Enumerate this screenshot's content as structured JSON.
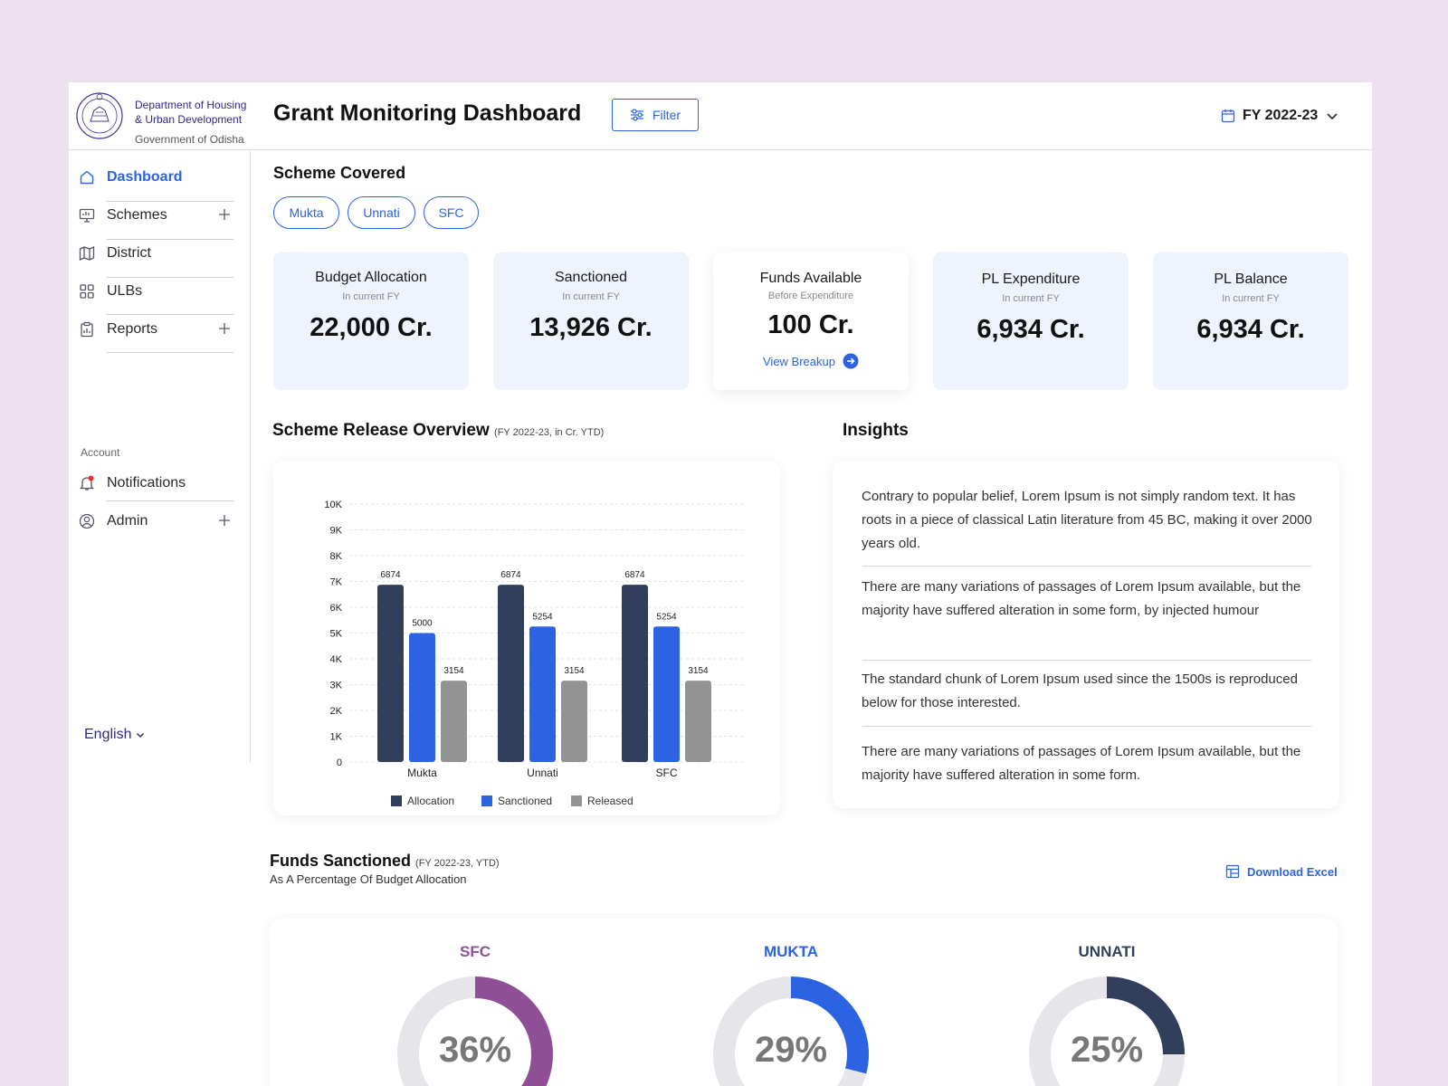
{
  "header": {
    "dept_line1": "Department of Housing",
    "dept_line2": "& Urban Development",
    "gov_line": "Government of Odisha",
    "title": "Grant Monitoring Dashboard",
    "filter_label": "Filter",
    "fy_label": "FY 2022-23"
  },
  "sidebar": {
    "items": [
      {
        "label": "Dashboard",
        "icon": "home-icon",
        "active": true
      },
      {
        "label": "Schemes",
        "icon": "monitor-icon",
        "expandable": true
      },
      {
        "label": "District",
        "icon": "map-icon"
      },
      {
        "label": "ULBs",
        "icon": "grid-icon"
      },
      {
        "label": "Reports",
        "icon": "clipboard-icon",
        "expandable": true
      }
    ],
    "account_label": "Account",
    "account_items": [
      {
        "label": "Notifications",
        "icon": "bell-icon"
      },
      {
        "label": "Admin",
        "icon": "user-circle-icon",
        "expandable": true
      }
    ],
    "language": "English"
  },
  "schemes": {
    "title": "Scheme Covered",
    "chips": [
      "Mukta",
      "Unnati",
      "SFC"
    ]
  },
  "cards": [
    {
      "title": "Budget Allocation",
      "subtitle": "In current FY",
      "value": "22,000 Cr."
    },
    {
      "title": "Sanctioned",
      "subtitle": "In current FY",
      "value": "13,926 Cr."
    },
    {
      "title": "Funds Available",
      "subtitle": "Before Expenditure",
      "value": "100 Cr.",
      "link": "View Breakup"
    },
    {
      "title": "PL Expenditure",
      "subtitle": "In current FY",
      "value": "6,934 Cr."
    },
    {
      "title": "PL Balance",
      "subtitle": "In current FY",
      "value": "6,934 Cr."
    }
  ],
  "release_overview": {
    "title": "Scheme Release Overview",
    "subtitle": "(FY 2022-23, in Cr. YTD)"
  },
  "insights": {
    "title": "Insights",
    "items": [
      "Contrary to popular belief, Lorem Ipsum is not simply random text. It has roots in a piece of classical Latin literature from 45 BC, making it over 2000 years old.",
      "There are many variations of passages of Lorem Ipsum available, but the majority have suffered alteration in some form, by injected humour",
      "The standard chunk of Lorem Ipsum used since the 1500s is reproduced below for those interested.",
      "There are many variations of passages of Lorem Ipsum available, but the majority have suffered alteration in some form."
    ]
  },
  "funds_sanctioned": {
    "title": "Funds Sanctioned",
    "subtitle": "(FY 2022-23, YTD)",
    "caption": "As A Percentage Of Budget Allocation",
    "download_label": "Download Excel",
    "donuts": [
      {
        "name": "SFC",
        "percent": 36,
        "label": "36%",
        "color": "#8e4f96"
      },
      {
        "name": "MUKTA",
        "percent": 29,
        "label": "29%",
        "color": "#2c63e3"
      },
      {
        "name": "UNNATI",
        "percent": 25,
        "label": "25%",
        "color": "#313e5c"
      }
    ]
  },
  "chart_data": {
    "type": "bar",
    "categories": [
      "Mukta",
      "Unnati",
      "SFC"
    ],
    "series": [
      {
        "name": "Allocation",
        "values": [
          6874,
          6874,
          6874
        ],
        "color": "#313e5c"
      },
      {
        "name": "Sanctioned",
        "values": [
          5000,
          5254,
          5254
        ],
        "color": "#2c63e3"
      },
      {
        "name": "Released",
        "values": [
          3154,
          3154,
          3154
        ],
        "color": "#939393"
      }
    ],
    "y_ticks": [
      "0",
      "1K",
      "2K",
      "3K",
      "4K",
      "5K",
      "6K",
      "7K",
      "8K",
      "9K",
      "10K"
    ],
    "ylim": [
      0,
      10000
    ],
    "grid": true,
    "legend": "bottom"
  }
}
